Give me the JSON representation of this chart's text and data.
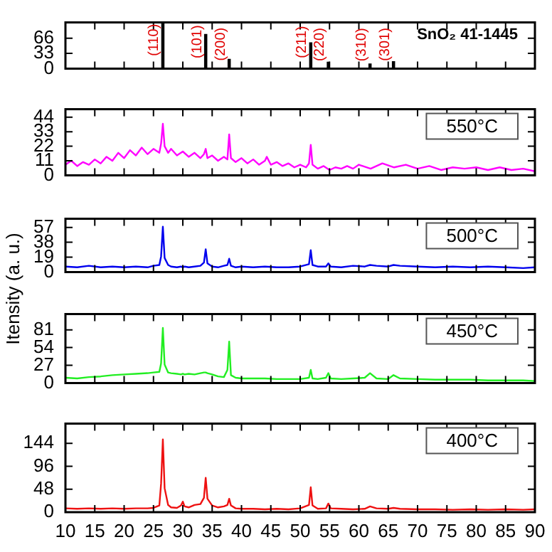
{
  "chart_data": [
    {
      "type": "bar",
      "x": [
        26.6,
        33.9,
        37.9,
        51.8,
        54.8,
        61.9,
        65.9
      ],
      "values": [
        100,
        74,
        20,
        56,
        14,
        10,
        15
      ],
      "color": "#000000",
      "xlim": [
        10,
        90
      ],
      "xticks": [
        10,
        15,
        20,
        25,
        30,
        35,
        40,
        45,
        50,
        55,
        60,
        65,
        70,
        75,
        80,
        85,
        90
      ],
      "ylim": [
        0,
        100
      ],
      "yticks": [
        0,
        33,
        66
      ],
      "tick_labels": "y",
      "grid": false,
      "legend": false,
      "annotations": [
        "SnO₂ 41-1445",
        {
          "text": "(110)",
          "x": 26.6,
          "y": 100
        },
        {
          "text": "(101)",
          "x": 33.9,
          "y": 74
        },
        {
          "text": "(200)",
          "x": 37.9,
          "y": 20
        },
        {
          "text": "(211)",
          "x": 51.8,
          "y": 56
        },
        {
          "text": "(220)",
          "x": 54.8,
          "y": 14
        },
        {
          "text": "(310)",
          "x": 61.9,
          "y": 10
        },
        {
          "text": "(301)",
          "x": 65.9,
          "y": 15
        }
      ]
    },
    {
      "type": "line",
      "x": [
        10,
        11,
        12,
        13,
        14,
        15,
        16,
        17,
        18,
        19,
        20,
        21,
        22,
        23,
        24,
        25,
        26,
        26.3,
        26.6,
        26.9,
        27.5,
        28,
        29,
        30,
        31,
        32,
        33,
        33.6,
        33.9,
        34.2,
        35,
        36,
        37,
        37.6,
        37.9,
        38.2,
        39,
        40,
        41,
        42,
        43,
        44,
        44.3,
        45,
        46,
        47,
        48,
        49,
        50,
        51,
        51.5,
        51.8,
        52.1,
        53,
        54,
        55,
        56,
        57,
        58,
        59,
        60,
        62,
        64,
        66,
        68,
        70,
        72,
        74,
        76,
        78,
        80,
        82,
        84,
        86,
        88,
        90
      ],
      "series": [
        {
          "color": "#ff00ff",
          "values": [
            8,
            11,
            7,
            10,
            8,
            12,
            9,
            14,
            11,
            17,
            13,
            19,
            15,
            21,
            16,
            20,
            17,
            24,
            39,
            22,
            17,
            20,
            15,
            18,
            14,
            17,
            13,
            16,
            20,
            13,
            15,
            11,
            14,
            12,
            31,
            13,
            10,
            13,
            9,
            12,
            8,
            11,
            14,
            8,
            10,
            7,
            9,
            6,
            8,
            6,
            9,
            23,
            8,
            5,
            7,
            4,
            6,
            5,
            7,
            5,
            8,
            5,
            9,
            6,
            8,
            5,
            7,
            4,
            6,
            5,
            6,
            4,
            6,
            4,
            5,
            3
          ]
        }
      ],
      "xlim": [
        10,
        90
      ],
      "xticks": [
        10,
        15,
        20,
        25,
        30,
        35,
        40,
        45,
        50,
        55,
        60,
        65,
        70,
        75,
        80,
        85,
        90
      ],
      "ylim": [
        0,
        50
      ],
      "yticks": [
        0,
        11,
        22,
        33,
        44
      ],
      "tick_labels": "y",
      "grid": false,
      "legend": false,
      "marker": "none",
      "line_style": "solid",
      "annotations": [
        "550°C"
      ]
    },
    {
      "type": "line",
      "x": [
        10,
        12,
        14,
        16,
        18,
        20,
        22,
        24,
        25,
        26,
        26.3,
        26.6,
        26.9,
        27.5,
        28,
        29,
        29.7,
        30,
        30.3,
        31,
        32,
        33,
        33.6,
        33.9,
        34.2,
        35,
        36,
        37,
        37.6,
        37.9,
        38.2,
        39,
        40,
        42,
        44,
        46,
        48,
        50,
        51.5,
        51.8,
        52.1,
        53,
        54.4,
        54.8,
        55.2,
        57,
        59,
        61,
        61.9,
        63,
        65,
        65.9,
        67,
        70,
        73,
        76,
        79,
        82,
        85,
        88,
        90
      ],
      "series": [
        {
          "color": "#0000ee",
          "values": [
            7,
            6,
            8,
            6,
            7,
            6,
            7,
            6,
            8,
            9,
            20,
            58,
            18,
            9,
            7,
            6,
            7,
            6,
            7,
            6,
            7,
            8,
            12,
            29,
            11,
            7,
            6,
            8,
            9,
            17,
            8,
            6,
            7,
            6,
            7,
            6,
            6,
            7,
            10,
            28,
            9,
            7,
            7,
            11,
            7,
            6,
            8,
            7,
            9,
            8,
            7,
            9,
            8,
            7,
            6,
            7,
            6,
            7,
            6,
            5,
            6
          ]
        }
      ],
      "xlim": [
        10,
        90
      ],
      "xticks": [
        10,
        15,
        20,
        25,
        30,
        35,
        40,
        45,
        50,
        55,
        60,
        65,
        70,
        75,
        80,
        85,
        90
      ],
      "ylim": [
        0,
        68
      ],
      "yticks": [
        0,
        19,
        38,
        57
      ],
      "ylabel": "Itensity (a. u.)",
      "tick_labels": "y",
      "grid": false,
      "legend": false,
      "marker": "none",
      "line_style": "solid",
      "annotations": [
        "500°C"
      ]
    },
    {
      "type": "line",
      "x": [
        10,
        12,
        14,
        16,
        18,
        20,
        22,
        24,
        25,
        26,
        26.3,
        26.6,
        26.9,
        27.5,
        28,
        29,
        29.7,
        30,
        30.3,
        31,
        32,
        33,
        33.6,
        33.9,
        34.2,
        35,
        36,
        37,
        37.6,
        37.9,
        38.2,
        39,
        40,
        42,
        44,
        46,
        48,
        50,
        51.5,
        51.8,
        52.1,
        53,
        54.4,
        54.8,
        55.2,
        57,
        59,
        61,
        61.9,
        63,
        65,
        65.9,
        67,
        70,
        73,
        76,
        79,
        82,
        85,
        88,
        90
      ],
      "series": [
        {
          "color": "#22ee22",
          "values": [
            8,
            7,
            9,
            10,
            12,
            13,
            14,
            15,
            16,
            17,
            30,
            84,
            28,
            16,
            15,
            14,
            13,
            14,
            13,
            14,
            13,
            15,
            16,
            16,
            15,
            13,
            10,
            9,
            20,
            63,
            12,
            8,
            7,
            7,
            7,
            6,
            6,
            6,
            8,
            20,
            7,
            6,
            8,
            15,
            7,
            6,
            7,
            8,
            15,
            7,
            6,
            12,
            7,
            6,
            5,
            5,
            5,
            4,
            4,
            4,
            3
          ]
        }
      ],
      "xlim": [
        10,
        90
      ],
      "xticks": [
        10,
        15,
        20,
        25,
        30,
        35,
        40,
        45,
        50,
        55,
        60,
        65,
        70,
        75,
        80,
        85,
        90
      ],
      "ylim": [
        0,
        105
      ],
      "yticks": [
        0,
        27,
        54,
        81
      ],
      "tick_labels": "y",
      "grid": false,
      "legend": false,
      "marker": "none",
      "line_style": "solid",
      "annotations": [
        "450°C"
      ]
    },
    {
      "type": "line",
      "x": [
        10,
        12,
        14,
        16,
        18,
        20,
        22,
        24,
        25,
        26,
        26.3,
        26.6,
        26.9,
        27.5,
        28,
        29,
        29.7,
        30,
        30.3,
        31,
        32,
        33,
        33.6,
        33.9,
        34.2,
        35,
        36,
        37,
        37.6,
        37.9,
        38.2,
        39,
        40,
        42,
        44,
        46,
        48,
        50,
        51.5,
        51.8,
        52.1,
        53,
        54.4,
        54.8,
        55.2,
        57,
        59,
        61,
        61.9,
        63,
        65,
        65.9,
        67,
        70,
        73,
        76,
        79,
        82,
        85,
        88,
        90
      ],
      "series": [
        {
          "color": "#ee1111",
          "values": [
            8,
            7,
            8,
            7,
            8,
            7,
            8,
            8,
            9,
            14,
            60,
            152,
            50,
            15,
            10,
            9,
            14,
            22,
            12,
            10,
            15,
            17,
            30,
            72,
            28,
            14,
            10,
            12,
            15,
            28,
            14,
            8,
            7,
            7,
            6,
            7,
            6,
            8,
            15,
            52,
            14,
            7,
            8,
            18,
            8,
            7,
            6,
            7,
            12,
            8,
            7,
            9,
            7,
            6,
            6,
            5,
            6,
            5,
            6,
            5,
            6
          ]
        }
      ],
      "xlim": [
        10,
        90
      ],
      "xticks": [
        10,
        15,
        20,
        25,
        30,
        35,
        40,
        45,
        50,
        55,
        60,
        65,
        70,
        75,
        80,
        85,
        90
      ],
      "ylim": [
        0,
        185
      ],
      "yticks": [
        0,
        48,
        96,
        144
      ],
      "grid": false,
      "legend": false,
      "marker": "none",
      "line_style": "solid",
      "annotations": [
        "400°C"
      ]
    }
  ]
}
